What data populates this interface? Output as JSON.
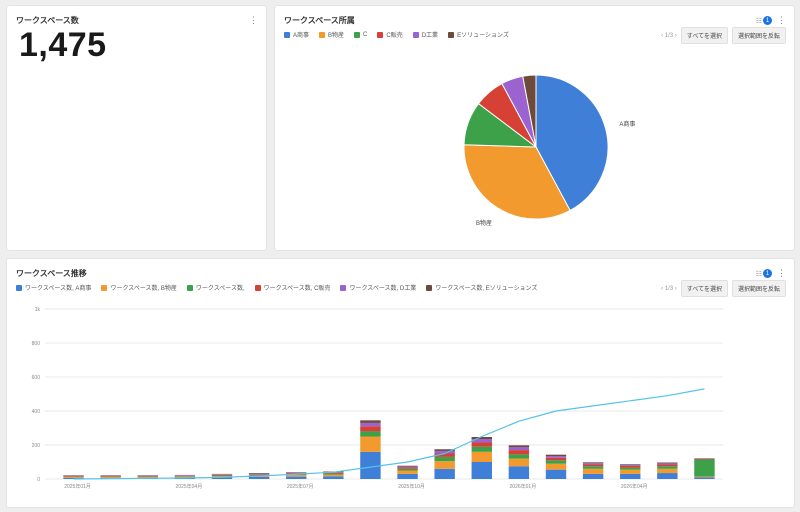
{
  "kpi_card": {
    "title": "ワークスペース数",
    "value": "1,475"
  },
  "pie_card": {
    "title": "ワークスペース所属",
    "pager": "1/3",
    "select_all": "すべてを選択",
    "invert": "選択範囲を反転",
    "filter_count": "1"
  },
  "trend_card": {
    "title": "ワークスペース推移",
    "pager": "1/3",
    "select_all": "すべてを選択",
    "invert": "選択範囲を反転",
    "filter_count": "1"
  },
  "colors": {
    "a": "#3f7fd8",
    "b": "#f29a2e",
    "c": "#3da14a",
    "d": "#d64035",
    "e": "#9a63cf",
    "f": "#6e4a3a",
    "line": "#54c3ea"
  },
  "chart_data": [
    {
      "type": "pie",
      "legend": [
        "A商事",
        "B物産",
        "C",
        "C販売",
        "D工業",
        "Eソリューションズ"
      ],
      "values": [
        43,
        34,
        10,
        7,
        5,
        3
      ],
      "slice_labels": [
        "A商事",
        "B物産",
        "",
        "",
        "",
        ""
      ]
    },
    {
      "type": "bar",
      "stacked": true,
      "legend": [
        "ワークスペース数, A商事",
        "ワークスペース数, B物産",
        "ワークスペース数,",
        "ワークスペース数, C販売",
        "ワークスペース数, D工業",
        "ワークスペース数, Eソリューションズ"
      ],
      "x_ticks": [
        "2025年01月",
        "2025年04月",
        "2025年07月",
        "2025年10月",
        "2026年01月",
        "2026年04月"
      ],
      "y_ticks": [
        "0",
        "200",
        "400",
        "600",
        "800",
        "1k"
      ],
      "ylim": [
        0,
        1000
      ],
      "series": [
        {
          "values": [
            6,
            6,
            6,
            7,
            10,
            12,
            14,
            16,
            160,
            30,
            60,
            100,
            75,
            55,
            30,
            30,
            35,
            10
          ]
        },
        {
          "values": [
            5,
            5,
            5,
            6,
            7,
            8,
            9,
            10,
            90,
            20,
            45,
            60,
            45,
            35,
            30,
            25,
            25,
            5
          ]
        },
        {
          "values": [
            3,
            3,
            3,
            3,
            4,
            4,
            5,
            6,
            30,
            10,
            25,
            30,
            25,
            20,
            15,
            12,
            15,
            100
          ]
        },
        {
          "values": [
            3,
            3,
            3,
            3,
            4,
            4,
            5,
            5,
            30,
            8,
            20,
            25,
            25,
            15,
            10,
            10,
            10,
            3
          ]
        },
        {
          "values": [
            3,
            3,
            3,
            3,
            3,
            4,
            4,
            4,
            20,
            6,
            15,
            20,
            18,
            10,
            8,
            6,
            7,
            2
          ]
        },
        {
          "values": [
            2,
            2,
            2,
            2,
            2,
            3,
            3,
            3,
            15,
            4,
            10,
            12,
            10,
            8,
            5,
            4,
            5,
            2
          ]
        }
      ],
      "line": {
        "values": [
          0,
          2,
          4,
          6,
          10,
          18,
          28,
          40,
          70,
          100,
          150,
          250,
          340,
          400,
          430,
          460,
          490,
          530
        ]
      }
    }
  ]
}
